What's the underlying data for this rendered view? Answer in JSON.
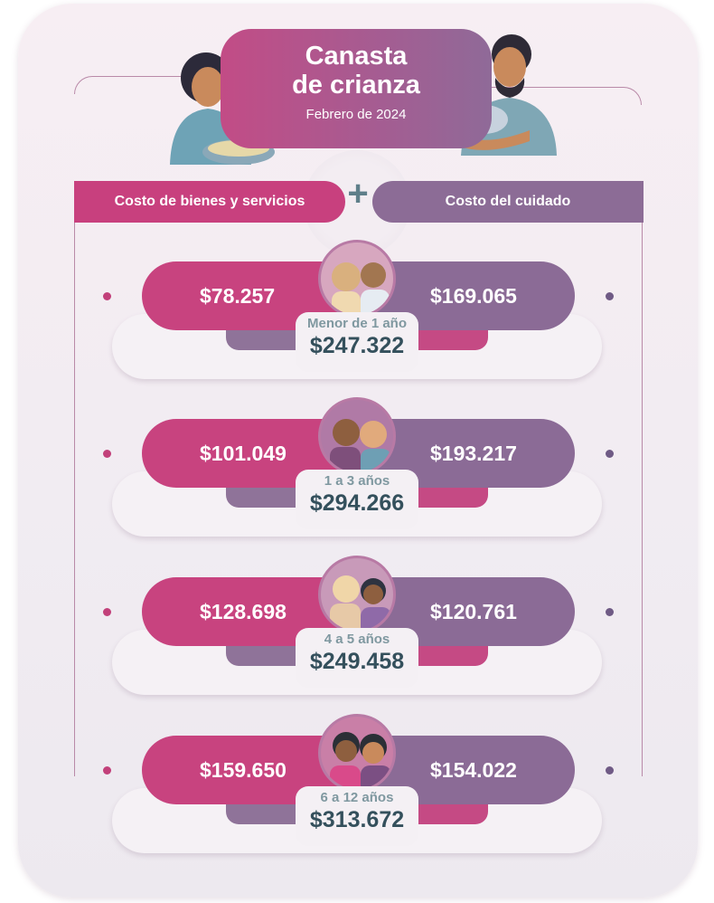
{
  "header": {
    "title_line1": "Canasta",
    "title_line2": "de crianza",
    "subtitle": "Febrero de 2024"
  },
  "categories": {
    "left": "Costo de bienes y servicios",
    "right": "Costo del cuidado",
    "plus": "+"
  },
  "rows": [
    {
      "age": "Menor de 1 año",
      "goods": "$78.257",
      "care": "$169.065",
      "total": "$247.322"
    },
    {
      "age": "1 a 3 años",
      "goods": "$101.049",
      "care": "$193.217",
      "total": "$294.266"
    },
    {
      "age": "4 a 5 años",
      "goods": "$128.698",
      "care": "$120.761",
      "total": "$249.458"
    },
    {
      "age": "6 a 12 años",
      "goods": "$159.650",
      "care": "$154.022",
      "total": "$313.672"
    }
  ],
  "colors": {
    "goods_accent": "#c8437f",
    "care_accent": "#8b6b96",
    "total_text": "#34505c",
    "age_text": "#7f98a0"
  },
  "icons": [
    "mother-cooking-illustration",
    "father-holding-baby-illustration",
    "plus-icon",
    "children-avatar"
  ]
}
